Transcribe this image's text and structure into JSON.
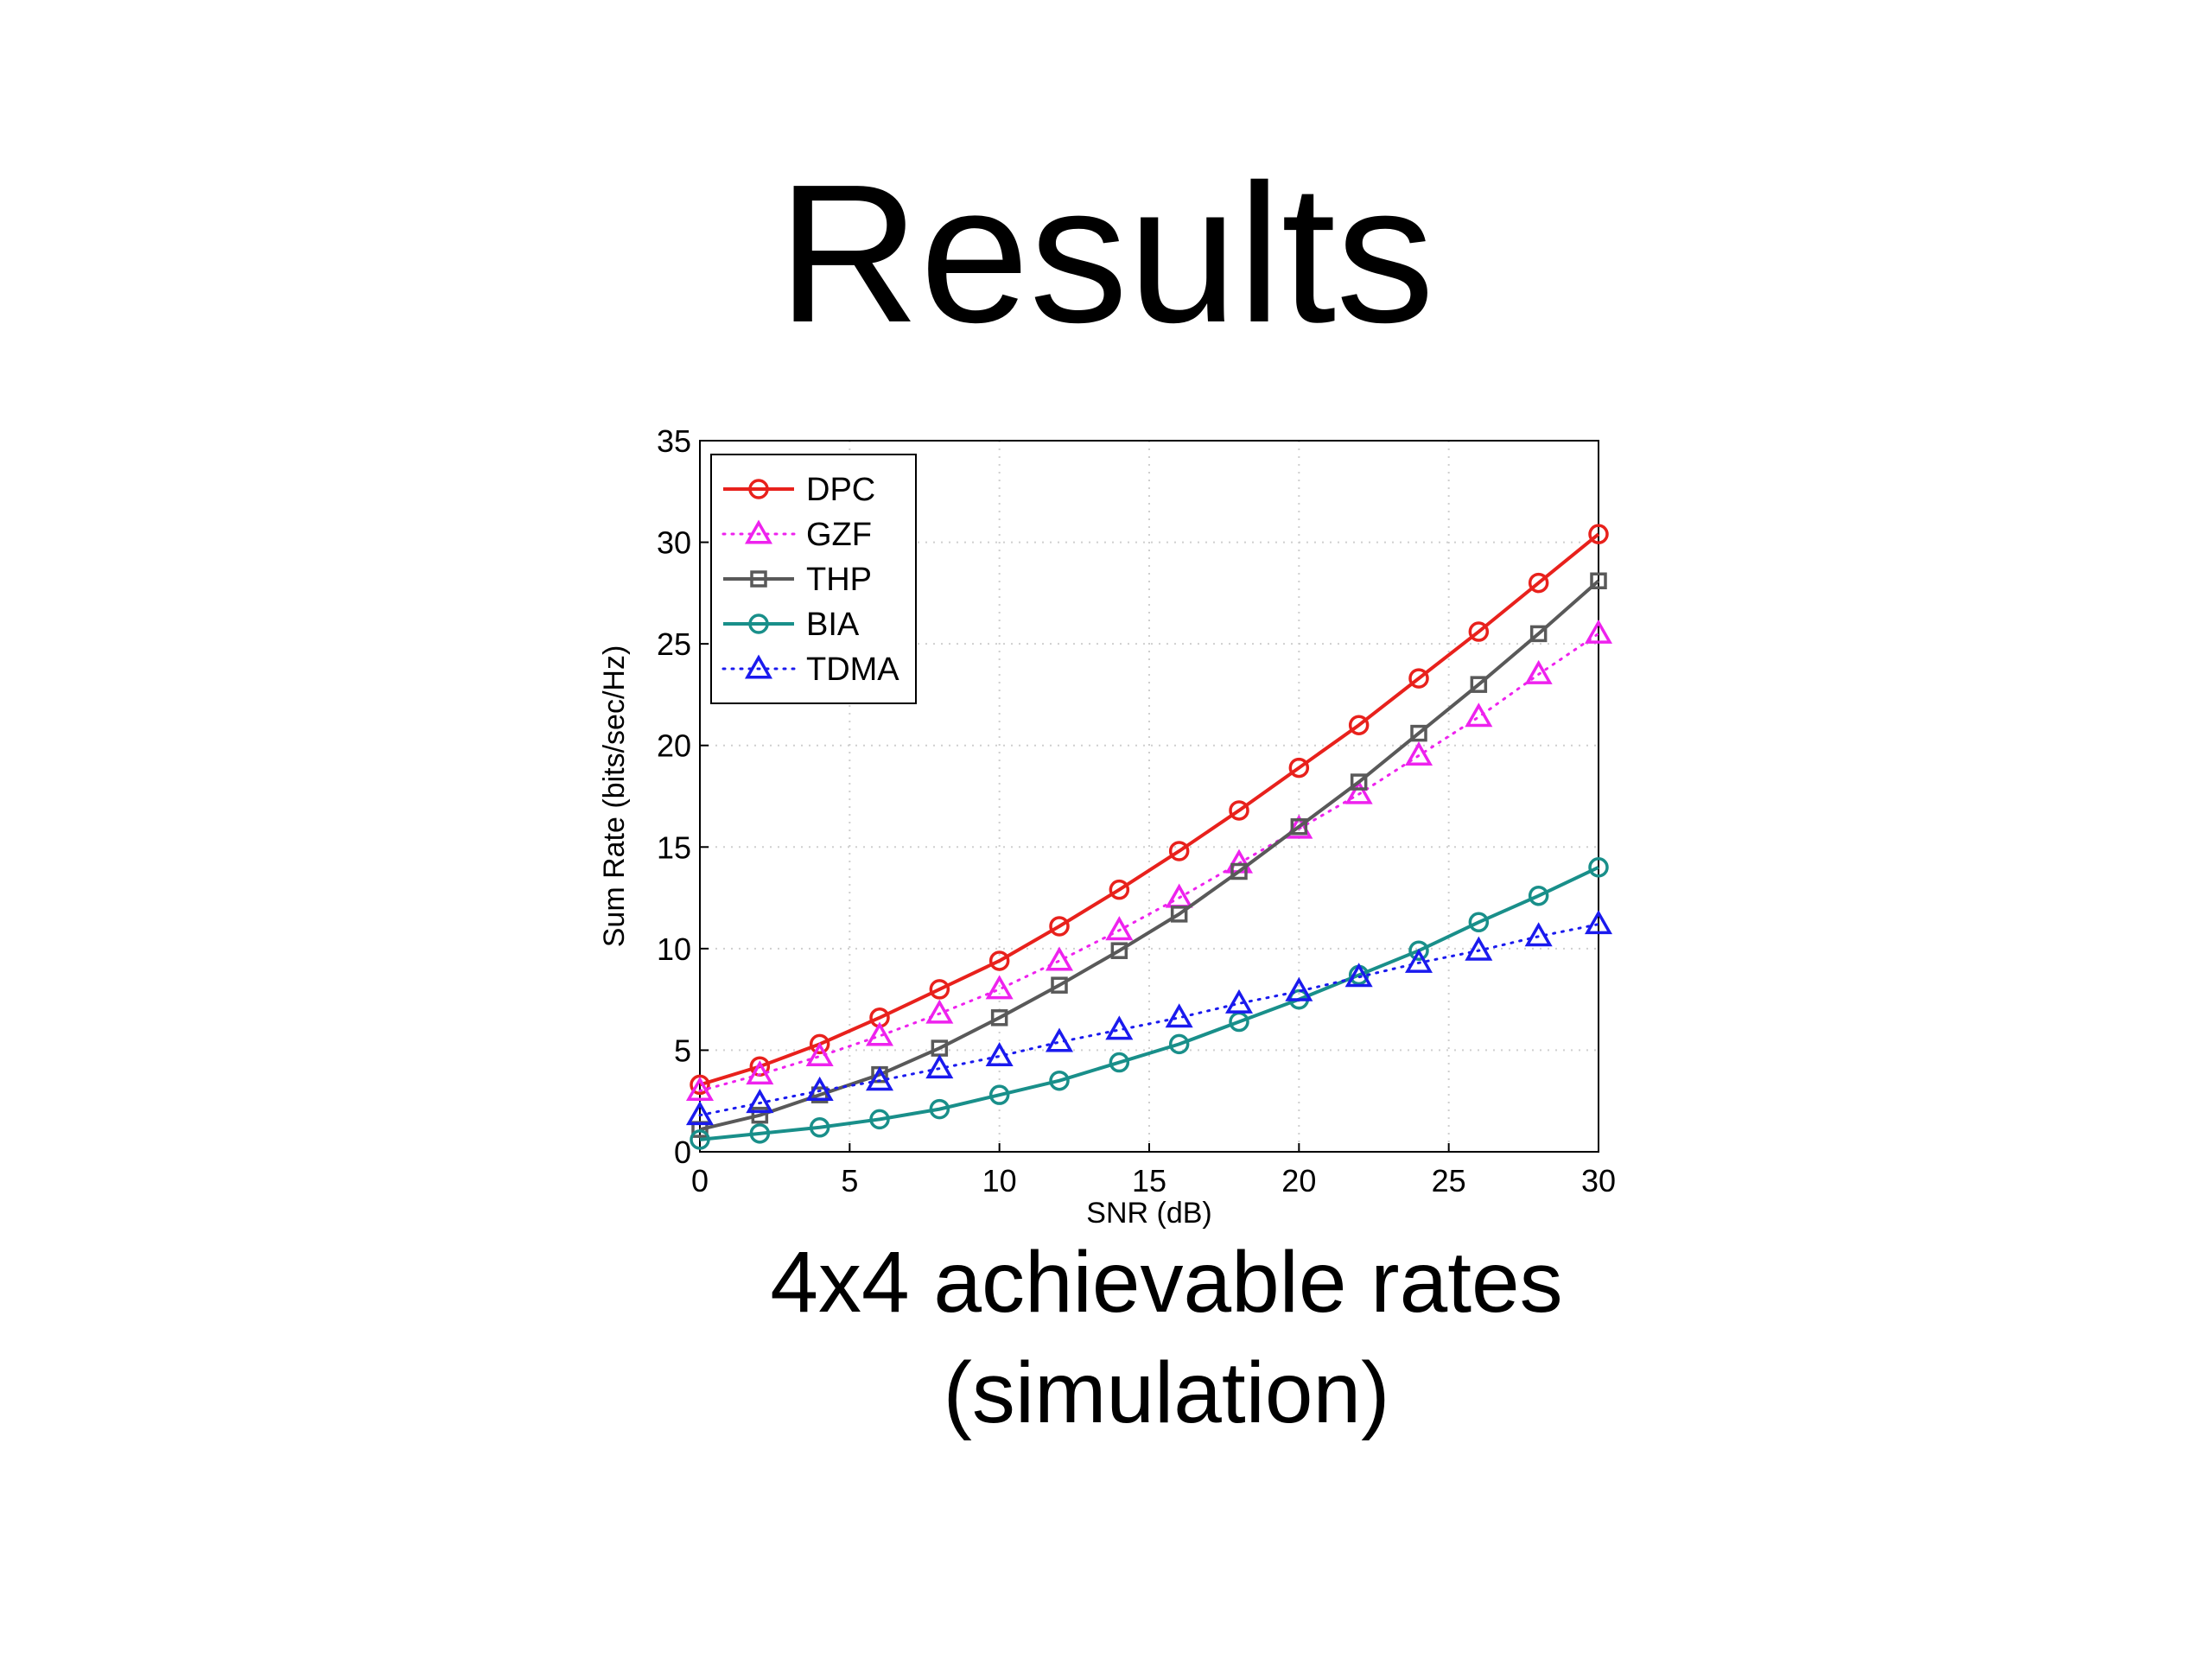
{
  "slide": {
    "title": "Results",
    "caption_line1": "4x4 achievable rates",
    "caption_line2": "(simulation)"
  },
  "chart_data": {
    "type": "line",
    "xlabel": "SNR (dB)",
    "ylabel": "Sum Rate (bits/sec/Hz)",
    "xlim": [
      0,
      30
    ],
    "ylim": [
      0,
      35
    ],
    "xticks": [
      0,
      5,
      10,
      15,
      20,
      25,
      30
    ],
    "yticks": [
      0,
      5,
      10,
      15,
      20,
      25,
      30,
      35
    ],
    "grid": true,
    "legend_position": "top-left",
    "x": [
      0,
      2,
      4,
      6,
      8,
      10,
      12,
      14,
      16,
      18,
      20,
      22,
      24,
      26,
      28,
      30
    ],
    "series": [
      {
        "name": "DPC",
        "color": "#e8211c",
        "marker": "circle",
        "line_style": "solid",
        "values": [
          3.3,
          4.2,
          5.3,
          6.6,
          8.0,
          9.4,
          11.1,
          12.9,
          14.8,
          16.8,
          18.9,
          21.0,
          23.3,
          25.6,
          28.0,
          30.4
        ]
      },
      {
        "name": "GZF",
        "color": "#ee22ee",
        "marker": "triangle",
        "line_style": "dotted",
        "values": [
          3.0,
          3.8,
          4.7,
          5.7,
          6.8,
          8.0,
          9.4,
          10.9,
          12.5,
          14.2,
          15.9,
          17.6,
          19.5,
          21.4,
          23.5,
          25.5
        ]
      },
      {
        "name": "THP",
        "color": "#595959",
        "marker": "square",
        "line_style": "solid",
        "values": [
          1.1,
          1.8,
          2.8,
          3.8,
          5.1,
          6.6,
          8.2,
          9.9,
          11.7,
          13.8,
          16.0,
          18.2,
          20.6,
          23.0,
          25.5,
          28.1
        ]
      },
      {
        "name": "BIA",
        "color": "#198f8a",
        "marker": "circle",
        "line_style": "solid",
        "values": [
          0.6,
          0.9,
          1.2,
          1.6,
          2.1,
          2.8,
          3.5,
          4.4,
          5.3,
          6.4,
          7.5,
          8.7,
          9.9,
          11.3,
          12.6,
          14.0
        ]
      },
      {
        "name": "TDMA",
        "color": "#1a1aee",
        "marker": "triangle",
        "line_style": "dotted",
        "values": [
          1.8,
          2.4,
          3.0,
          3.5,
          4.1,
          4.7,
          5.4,
          6.0,
          6.6,
          7.3,
          7.9,
          8.6,
          9.3,
          9.9,
          10.6,
          11.2
        ]
      }
    ]
  }
}
